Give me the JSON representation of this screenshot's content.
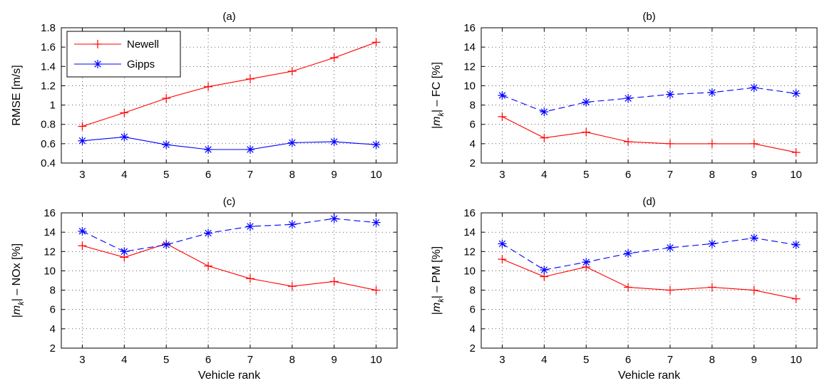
{
  "chart_data": [
    {
      "id": "a",
      "type": "line",
      "title": "(a)",
      "xlabel": "",
      "ylabel": "RMSE [m/s]",
      "ylabel_sub": "",
      "ylabel_tail": "",
      "x": [
        3,
        4,
        5,
        6,
        7,
        8,
        9,
        10
      ],
      "xlim": [
        2.5,
        10.5
      ],
      "ylim": [
        0.4,
        1.8
      ],
      "yticks": [
        0.4,
        0.6,
        0.8,
        1,
        1.2,
        1.4,
        1.6,
        1.8
      ],
      "grid": true,
      "legend": "top-left",
      "series": [
        {
          "name": "Newell",
          "color": "#ff0000",
          "marker": "plus",
          "dash": "solid",
          "values": [
            0.78,
            0.92,
            1.07,
            1.19,
            1.27,
            1.35,
            1.49,
            1.65
          ]
        },
        {
          "name": "Gipps",
          "color": "#0000ff",
          "marker": "star",
          "dash": "solid",
          "values": [
            0.63,
            0.67,
            0.59,
            0.54,
            0.54,
            0.61,
            0.62,
            0.59
          ]
        }
      ]
    },
    {
      "id": "b",
      "type": "line",
      "title": "(b)",
      "xlabel": "",
      "ylabel": "|m",
      "ylabel_sub": "k",
      "ylabel_tail": "| – FC [%]",
      "x": [
        3,
        4,
        5,
        6,
        7,
        8,
        9,
        10
      ],
      "xlim": [
        2.5,
        10.5
      ],
      "ylim": [
        2,
        16
      ],
      "yticks": [
        2,
        4,
        6,
        8,
        10,
        12,
        14,
        16
      ],
      "grid": true,
      "legend": "none",
      "series": [
        {
          "color": "#ff0000",
          "marker": "plus",
          "dash": "solid",
          "values": [
            6.8,
            4.6,
            5.2,
            4.2,
            4.0,
            4.0,
            4.0,
            3.1
          ]
        },
        {
          "color": "#0000ff",
          "marker": "star",
          "dash": "dashed",
          "values": [
            9.0,
            7.3,
            8.3,
            8.7,
            9.1,
            9.3,
            9.8,
            9.2
          ]
        }
      ]
    },
    {
      "id": "c",
      "type": "line",
      "title": "(c)",
      "xlabel": "Vehicle rank",
      "ylabel": "|m",
      "ylabel_sub": "k",
      "ylabel_tail": "| – NOx [%]",
      "x": [
        3,
        4,
        5,
        6,
        7,
        8,
        9,
        10
      ],
      "xlim": [
        2.5,
        10.5
      ],
      "ylim": [
        2,
        16
      ],
      "yticks": [
        2,
        4,
        6,
        8,
        10,
        12,
        14,
        16
      ],
      "grid": true,
      "legend": "none",
      "series": [
        {
          "color": "#ff0000",
          "marker": "plus",
          "dash": "solid",
          "values": [
            12.6,
            11.4,
            12.8,
            10.5,
            9.2,
            8.4,
            8.9,
            8.0
          ]
        },
        {
          "color": "#0000ff",
          "marker": "star",
          "dash": "dashed",
          "values": [
            14.1,
            12.0,
            12.7,
            13.9,
            14.6,
            14.8,
            15.4,
            15.0
          ]
        }
      ]
    },
    {
      "id": "d",
      "type": "line",
      "title": "(d)",
      "xlabel": "Vehicle rank",
      "ylabel": "|m",
      "ylabel_sub": "k",
      "ylabel_tail": "| – PM [%]",
      "x": [
        3,
        4,
        5,
        6,
        7,
        8,
        9,
        10
      ],
      "xlim": [
        2.5,
        10.5
      ],
      "ylim": [
        2,
        16
      ],
      "yticks": [
        2,
        4,
        6,
        8,
        10,
        12,
        14,
        16
      ],
      "grid": true,
      "legend": "none",
      "series": [
        {
          "color": "#ff0000",
          "marker": "plus",
          "dash": "solid",
          "values": [
            11.2,
            9.4,
            10.4,
            8.3,
            8.0,
            8.3,
            8.0,
            7.1
          ]
        },
        {
          "color": "#0000ff",
          "marker": "star",
          "dash": "dashed",
          "values": [
            12.8,
            10.1,
            10.9,
            11.8,
            12.4,
            12.8,
            13.4,
            12.7
          ]
        }
      ]
    }
  ]
}
